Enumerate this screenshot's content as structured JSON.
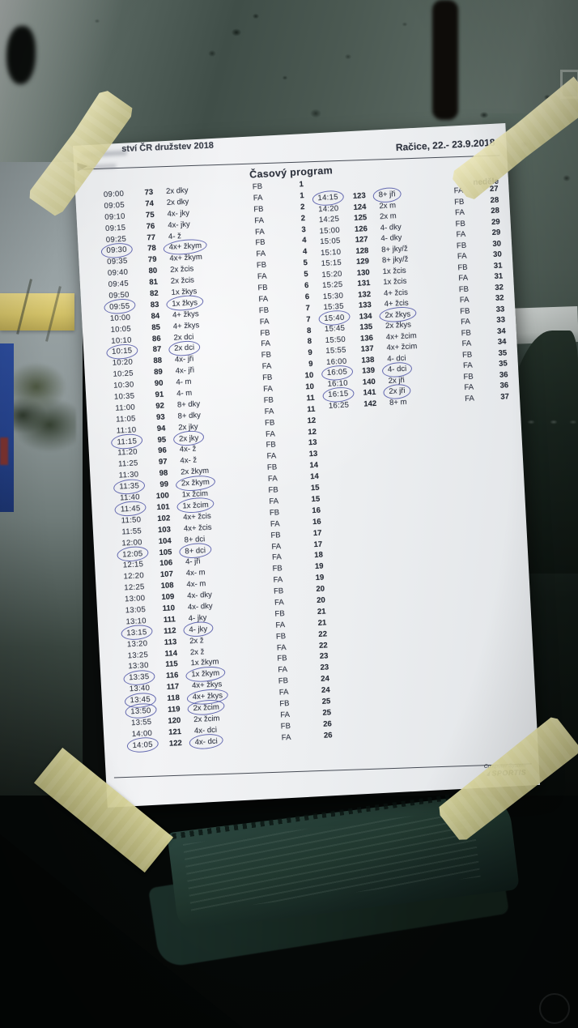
{
  "scene": {
    "paper_color": "#eef0f2",
    "ink_color": "#343947",
    "pen_circle_color": "#3e449e",
    "tape_color": "#ddd8a6",
    "glass_color": "#49574f"
  },
  "document": {
    "header": {
      "title_partial": "ství ČR družstev 2018",
      "location_date": "Račice,  22.- 23.9.2018",
      "program_title": "Časový program",
      "day_label": "neděle"
    },
    "footer": {
      "line1": "Computer System",
      "line2": "SPORTIS"
    },
    "schedule_left": [
      {
        "t": "09:00",
        "no": "73",
        "cls": "2x dky",
        "ht": "FB",
        "fn": "1"
      },
      {
        "t": "09:05",
        "no": "74",
        "cls": "2x dky",
        "ht": "FA",
        "fn": "1"
      },
      {
        "t": "09:10",
        "no": "75",
        "cls": "4x- jky",
        "ht": "FB",
        "fn": "2"
      },
      {
        "t": "09:15",
        "no": "76",
        "cls": "4x- jky",
        "ht": "FA",
        "fn": "2"
      },
      {
        "t": "09:25",
        "no": "77",
        "cls": "4- ž",
        "ht": "FA",
        "fn": "3"
      },
      {
        "t": "09:30",
        "no": "78",
        "cls": "4x+ žkym",
        "ht": "FB",
        "fn": "4",
        "ct": true,
        "cc": true
      },
      {
        "t": "09:35",
        "no": "79",
        "cls": "4x+ žkym",
        "ht": "FA",
        "fn": "4"
      },
      {
        "t": "09:40",
        "no": "80",
        "cls": "2x žcis",
        "ht": "FB",
        "fn": "5"
      },
      {
        "t": "09:45",
        "no": "81",
        "cls": "2x žcis",
        "ht": "FA",
        "fn": "5"
      },
      {
        "t": "09:50",
        "no": "82",
        "cls": "1x žkys",
        "ht": "FB",
        "fn": "6"
      },
      {
        "t": "09:55",
        "no": "83",
        "cls": "1x žkys",
        "ht": "FA",
        "fn": "6",
        "ct": true,
        "cc": true
      },
      {
        "t": "10:00",
        "no": "84",
        "cls": "4+ žkys",
        "ht": "FB",
        "fn": "7"
      },
      {
        "t": "10:05",
        "no": "85",
        "cls": "4+ žkys",
        "ht": "FA",
        "fn": "7"
      },
      {
        "t": "10:10",
        "no": "86",
        "cls": "2x dci",
        "ht": "FB",
        "fn": "8"
      },
      {
        "t": "10:15",
        "no": "87",
        "cls": "2x dci",
        "ht": "FA",
        "fn": "8",
        "ct": true,
        "cc": true
      },
      {
        "t": "10:20",
        "no": "88",
        "cls": "4x- jři",
        "ht": "FB",
        "fn": "9"
      },
      {
        "t": "10:25",
        "no": "89",
        "cls": "4x- jři",
        "ht": "FA",
        "fn": "9"
      },
      {
        "t": "10:30",
        "no": "90",
        "cls": "4- m",
        "ht": "FB",
        "fn": "10"
      },
      {
        "t": "10:35",
        "no": "91",
        "cls": "4- m",
        "ht": "FA",
        "fn": "10"
      },
      {
        "t": "11:00",
        "no": "92",
        "cls": "8+ dky",
        "ht": "FB",
        "fn": "11"
      },
      {
        "t": "11:05",
        "no": "93",
        "cls": "8+ dky",
        "ht": "FA",
        "fn": "11"
      },
      {
        "t": "11:10",
        "no": "94",
        "cls": "2x jky",
        "ht": "FB",
        "fn": "12"
      },
      {
        "t": "11:15",
        "no": "95",
        "cls": "2x jky",
        "ht": "FA",
        "fn": "12",
        "ct": true,
        "cc": true
      },
      {
        "t": "11:20",
        "no": "96",
        "cls": "4x- ž",
        "ht": "FB",
        "fn": "13"
      },
      {
        "t": "11:25",
        "no": "97",
        "cls": "4x- ž",
        "ht": "FA",
        "fn": "13"
      },
      {
        "t": "11:30",
        "no": "98",
        "cls": "2x žkym",
        "ht": "FB",
        "fn": "14"
      },
      {
        "t": "11:35",
        "no": "99",
        "cls": "2x žkym",
        "ht": "FA",
        "fn": "14",
        "ct": true,
        "cc": true
      },
      {
        "t": "11:40",
        "no": "100",
        "cls": "1x žcim",
        "ht": "FB",
        "fn": "15"
      },
      {
        "t": "11:45",
        "no": "101",
        "cls": "1x žcim",
        "ht": "FA",
        "fn": "15",
        "ct": true,
        "cc": true
      },
      {
        "t": "11:50",
        "no": "102",
        "cls": "4x+ žcis",
        "ht": "FB",
        "fn": "16"
      },
      {
        "t": "11:55",
        "no": "103",
        "cls": "4x+ žcis",
        "ht": "FA",
        "fn": "16"
      },
      {
        "t": "12:00",
        "no": "104",
        "cls": "8+ dci",
        "ht": "FB",
        "fn": "17"
      },
      {
        "t": "12:05",
        "no": "105",
        "cls": "8+ dci",
        "ht": "FA",
        "fn": "17",
        "ct": true,
        "cc": true
      },
      {
        "t": "12:15",
        "no": "106",
        "cls": "4- jři",
        "ht": "FA",
        "fn": "18"
      },
      {
        "t": "12:20",
        "no": "107",
        "cls": "4x- m",
        "ht": "FB",
        "fn": "19"
      },
      {
        "t": "12:25",
        "no": "108",
        "cls": "4x- m",
        "ht": "FA",
        "fn": "19"
      },
      {
        "t": "13:00",
        "no": "109",
        "cls": "4x- dky",
        "ht": "FB",
        "fn": "20"
      },
      {
        "t": "13:05",
        "no": "110",
        "cls": "4x- dky",
        "ht": "FA",
        "fn": "20"
      },
      {
        "t": "13:10",
        "no": "111",
        "cls": "4- jky",
        "ht": "FB",
        "fn": "21"
      },
      {
        "t": "13:15",
        "no": "112",
        "cls": "4- jky",
        "ht": "FA",
        "fn": "21",
        "ct": true,
        "cc": true
      },
      {
        "t": "13:20",
        "no": "113",
        "cls": "2x ž",
        "ht": "FB",
        "fn": "22"
      },
      {
        "t": "13:25",
        "no": "114",
        "cls": "2x ž",
        "ht": "FA",
        "fn": "22"
      },
      {
        "t": "13:30",
        "no": "115",
        "cls": "1x žkym",
        "ht": "FB",
        "fn": "23"
      },
      {
        "t": "13:35",
        "no": "116",
        "cls": "1x žkym",
        "ht": "FA",
        "fn": "23",
        "ct": true,
        "cc": true
      },
      {
        "t": "13:40",
        "no": "117",
        "cls": "4x+ žkys",
        "ht": "FB",
        "fn": "24"
      },
      {
        "t": "13:45",
        "no": "118",
        "cls": "4x+ žkys",
        "ht": "FA",
        "fn": "24",
        "ct": true,
        "cc": true
      },
      {
        "t": "13:50",
        "no": "119",
        "cls": "2x žcim",
        "ht": "FB",
        "fn": "25",
        "ct": true,
        "cc": true
      },
      {
        "t": "13:55",
        "no": "120",
        "cls": "2x žcim",
        "ht": "FA",
        "fn": "25"
      },
      {
        "t": "14:00",
        "no": "121",
        "cls": "4x- dci",
        "ht": "FB",
        "fn": "26"
      },
      {
        "t": "14:05",
        "no": "122",
        "cls": "4x- dci",
        "ht": "FA",
        "fn": "26",
        "ct": true,
        "cc": true
      }
    ],
    "schedule_right": [
      {
        "t": "14:15",
        "no": "123",
        "cls": "8+ jři",
        "ht": "FA",
        "fn": "27",
        "ct": true,
        "cc": true
      },
      {
        "t": "14:20",
        "no": "124",
        "cls": "2x m",
        "ht": "FB",
        "fn": "28"
      },
      {
        "t": "14:25",
        "no": "125",
        "cls": "2x m",
        "ht": "FA",
        "fn": "28"
      },
      {
        "t": "15:00",
        "no": "126",
        "cls": "4- dky",
        "ht": "FB",
        "fn": "29"
      },
      {
        "t": "15:05",
        "no": "127",
        "cls": "4- dky",
        "ht": "FA",
        "fn": "29"
      },
      {
        "t": "15:10",
        "no": "128",
        "cls": "8+ jky/ž",
        "ht": "FB",
        "fn": "30"
      },
      {
        "t": "15:15",
        "no": "129",
        "cls": "8+ jky/ž",
        "ht": "FA",
        "fn": "30"
      },
      {
        "t": "15:20",
        "no": "130",
        "cls": "1x žcis",
        "ht": "FB",
        "fn": "31"
      },
      {
        "t": "15:25",
        "no": "131",
        "cls": "1x žcis",
        "ht": "FA",
        "fn": "31"
      },
      {
        "t": "15:30",
        "no": "132",
        "cls": "4+ žcis",
        "ht": "FB",
        "fn": "32"
      },
      {
        "t": "15:35",
        "no": "133",
        "cls": "4+ žcis",
        "ht": "FA",
        "fn": "32"
      },
      {
        "t": "15:40",
        "no": "134",
        "cls": "2x žkys",
        "ht": "FB",
        "fn": "33",
        "ct": true,
        "cc": true
      },
      {
        "t": "15:45",
        "no": "135",
        "cls": "2x žkys",
        "ht": "FA",
        "fn": "33"
      },
      {
        "t": "15:50",
        "no": "136",
        "cls": "4x+ žcim",
        "ht": "FB",
        "fn": "34"
      },
      {
        "t": "15:55",
        "no": "137",
        "cls": "4x+ žcim",
        "ht": "FA",
        "fn": "34"
      },
      {
        "t": "16:00",
        "no": "138",
        "cls": "4- dci",
        "ht": "FB",
        "fn": "35"
      },
      {
        "t": "16:05",
        "no": "139",
        "cls": "4- dci",
        "ht": "FA",
        "fn": "35",
        "ct": true,
        "cc": true
      },
      {
        "t": "16:10",
        "no": "140",
        "cls": "2x jři",
        "ht": "FB",
        "fn": "36"
      },
      {
        "t": "16:15",
        "no": "141",
        "cls": "2x jři",
        "ht": "FA",
        "fn": "36",
        "ct": true,
        "cc": true
      },
      {
        "t": "16:25",
        "no": "142",
        "cls": "8+ m",
        "ht": "FA",
        "fn": "37"
      }
    ]
  }
}
